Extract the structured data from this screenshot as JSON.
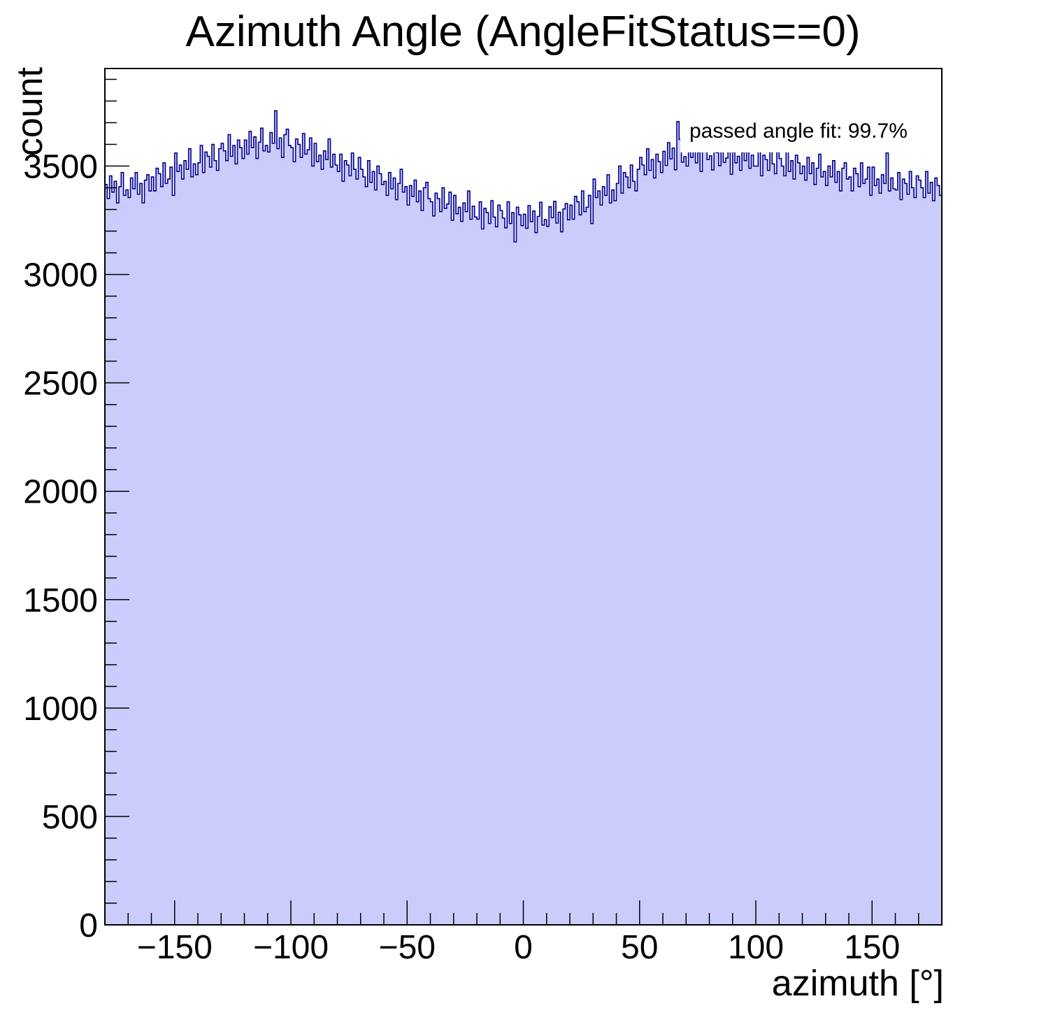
{
  "chart_data": {
    "type": "bar",
    "variant": "step-histogram-filled",
    "title": "Azimuth Angle (AngleFitStatus==0)",
    "xlabel": "azimuth [°]",
    "ylabel": "count",
    "annotation": "passed angle fit: 99.7%",
    "grid": false,
    "legend_position": "none",
    "xlim": [
      -180,
      180
    ],
    "ylim": [
      0,
      3950
    ],
    "bin_width_deg": 1,
    "x_major_ticks": [
      {
        "value": -150,
        "label": "−150"
      },
      {
        "value": -100,
        "label": "−100"
      },
      {
        "value": -50,
        "label": "−50"
      },
      {
        "value": 0,
        "label": "0"
      },
      {
        "value": 50,
        "label": "50"
      },
      {
        "value": 100,
        "label": "100"
      },
      {
        "value": 150,
        "label": "150"
      }
    ],
    "x_minor_step": 10,
    "y_major_ticks": [
      {
        "value": 0,
        "label": "0"
      },
      {
        "value": 500,
        "label": "500"
      },
      {
        "value": 1000,
        "label": "1000"
      },
      {
        "value": 1500,
        "label": "1500"
      },
      {
        "value": 2000,
        "label": "2000"
      },
      {
        "value": 2500,
        "label": "2500"
      },
      {
        "value": 3000,
        "label": "3000"
      },
      {
        "value": 3500,
        "label": "3500"
      }
    ],
    "y_minor_step": 100,
    "colors": {
      "fill": "#ccccfc",
      "line": "#00008c",
      "axis": "#000000",
      "text": "#000000",
      "annotation_bg": "#ffffff"
    },
    "values": [
      3415,
      3350,
      3455,
      3380,
      3430,
      3330,
      3405,
      3470,
      3365,
      3390,
      3355,
      3445,
      3395,
      3470,
      3370,
      3420,
      3330,
      3435,
      3460,
      3385,
      3450,
      3385,
      3490,
      3465,
      3405,
      3515,
      3420,
      3440,
      3495,
      3365,
      3560,
      3475,
      3505,
      3440,
      3525,
      3485,
      3580,
      3450,
      3510,
      3460,
      3515,
      3595,
      3470,
      3565,
      3545,
      3495,
      3600,
      3525,
      3480,
      3580,
      3605,
      3570,
      3525,
      3645,
      3545,
      3595,
      3510,
      3620,
      3585,
      3535,
      3620,
      3555,
      3660,
      3585,
      3635,
      3535,
      3610,
      3675,
      3570,
      3595,
      3565,
      3655,
      3605,
      3755,
      3580,
      3630,
      3540,
      3645,
      3670,
      3595,
      3585,
      3520,
      3625,
      3600,
      3540,
      3650,
      3555,
      3575,
      3630,
      3500,
      3605,
      3520,
      3550,
      3485,
      3570,
      3530,
      3625,
      3495,
      3555,
      3505,
      3475,
      3555,
      3430,
      3525,
      3505,
      3455,
      3560,
      3485,
      3440,
      3540,
      3485,
      3450,
      3405,
      3525,
      3425,
      3475,
      3390,
      3500,
      3465,
      3415,
      3430,
      3365,
      3470,
      3395,
      3445,
      3345,
      3420,
      3485,
      3380,
      3405,
      3320,
      3410,
      3360,
      3435,
      3335,
      3385,
      3295,
      3400,
      3425,
      3350,
      3335,
      3270,
      3375,
      3350,
      3290,
      3400,
      3305,
      3325,
      3380,
      3250,
      3365,
      3280,
      3310,
      3245,
      3330,
      3290,
      3385,
      3255,
      3315,
      3265,
      3255,
      3335,
      3210,
      3305,
      3285,
      3235,
      3340,
      3265,
      3220,
      3320,
      3295,
      3260,
      3215,
      3335,
      3235,
      3285,
      3150,
      3310,
      3275,
      3225,
      3278,
      3213,
      3318,
      3243,
      3293,
      3193,
      3268,
      3333,
      3228,
      3253,
      3222,
      3312,
      3262,
      3337,
      3237,
      3287,
      3197,
      3302,
      3327,
      3252,
      3320,
      3255,
      3360,
      3335,
      3275,
      3385,
      3290,
      3310,
      3365,
      3235,
      3440,
      3355,
      3385,
      3320,
      3405,
      3365,
      3460,
      3330,
      3390,
      3340,
      3420,
      3500,
      3375,
      3470,
      3450,
      3400,
      3505,
      3430,
      3385,
      3485,
      3540,
      3505,
      3460,
      3580,
      3480,
      3530,
      3445,
      3555,
      3520,
      3470,
      3568,
      3503,
      3608,
      3533,
      3583,
      3483,
      3705,
      3623,
      3518,
      3543,
      3500,
      3590,
      3540,
      3615,
      3515,
      3565,
      3475,
      3580,
      3605,
      3530,
      3547,
      3482,
      3587,
      3562,
      3502,
      3612,
      3517,
      3537,
      3592,
      3462,
      3600,
      3515,
      3545,
      3480,
      3565,
      3525,
      3620,
      3490,
      3550,
      3500,
      3500,
      3580,
      3455,
      3550,
      3530,
      3480,
      3585,
      3510,
      3465,
      3565,
      3535,
      3500,
      3455,
      3575,
      3475,
      3525,
      3440,
      3550,
      3515,
      3465,
      3500,
      3435,
      3540,
      3465,
      3515,
      3415,
      3490,
      3555,
      3450,
      3475,
      3410,
      3500,
      3450,
      3525,
      3425,
      3475,
      3385,
      3490,
      3515,
      3440,
      3450,
      3385,
      3490,
      3465,
      3405,
      3515,
      3420,
      3440,
      3495,
      3365,
      3495,
      3410,
      3440,
      3375,
      3460,
      3420,
      3560,
      3385,
      3445,
      3395,
      3390,
      3470,
      3345,
      3440,
      3420,
      3370,
      3475,
      3400,
      3355,
      3455,
      3435,
      3400,
      3355,
      3475,
      3375,
      3425,
      3340,
      3445,
      3410,
      3365
    ]
  }
}
